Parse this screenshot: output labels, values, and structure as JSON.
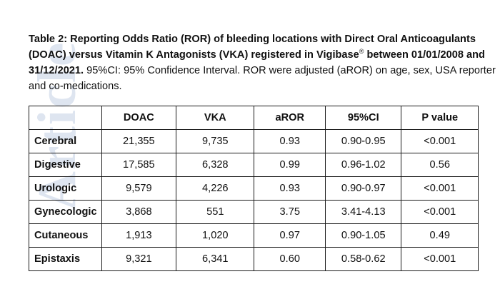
{
  "watermark": "Article",
  "caption": {
    "bold_part": "Table 2: Reporting Odds Ratio (ROR) of bleeding locations with Direct Oral Anticoagulants (DOAC) versus Vitamin K Antagonists (VKA) registered in Vigibase",
    "registered_mark": "®",
    "bold_part_2": "  between 01/01/2008 and 31/12/2021.",
    "regular_part": " 95%CI: 95% Confidence Interval. ROR were adjusted (aROR) on age, sex, USA reporter and co-medications."
  },
  "table": {
    "headers": [
      "",
      "DOAC",
      "VKA",
      "aROR",
      "95%CI",
      "P value"
    ],
    "rows": [
      {
        "location": "Cerebral",
        "doac": "21,355",
        "vka": "9,735",
        "aror": "0.93",
        "ci": "0.90-0.95",
        "p": "<0.001"
      },
      {
        "location": "Digestive",
        "doac": "17,585",
        "vka": "6,328",
        "aror": "0.99",
        "ci": "0.96-1.02",
        "p": "0.56"
      },
      {
        "location": "Urologic",
        "doac": "9,579",
        "vka": "4,226",
        "aror": "0.93",
        "ci": "0.90-0.97",
        "p": "<0.001"
      },
      {
        "location": "Gynecologic",
        "doac": "3,868",
        "vka": "551",
        "aror": "3.75",
        "ci": "3.41-4.13",
        "p": "<0.001"
      },
      {
        "location": "Cutaneous",
        "doac": "1,913",
        "vka": "1,020",
        "aror": "0.97",
        "ci": "0.90-1.05",
        "p": "0.49"
      },
      {
        "location": "Epistaxis",
        "doac": "9,321",
        "vka": "6,341",
        "aror": "0.60",
        "ci": "0.58-0.62",
        "p": "<0.001"
      }
    ]
  }
}
